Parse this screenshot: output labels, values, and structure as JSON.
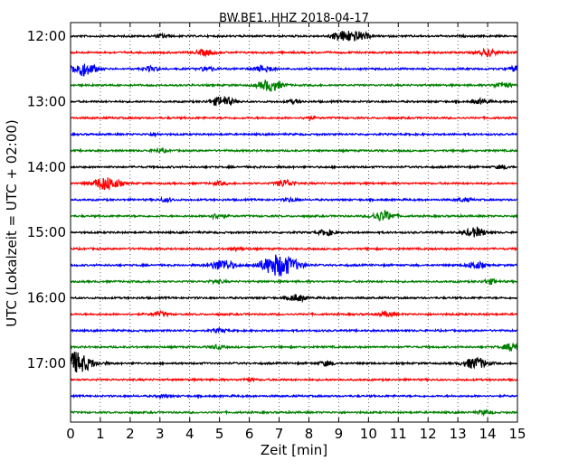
{
  "chart_data": {
    "type": "line",
    "title": "BW.BE1..HHZ 2018-04-17",
    "xlabel": "Zeit  [min]",
    "ylabel": "UTC (Lokalzeit = UTC + 02:00)",
    "xlim": [
      0,
      15
    ],
    "x_ticks": [
      "0",
      "1",
      "2",
      "3",
      "4",
      "5",
      "6",
      "7",
      "8",
      "9",
      "10",
      "11",
      "12",
      "13",
      "14",
      "15"
    ],
    "y_tick_labels": [
      "12:00",
      "13:00",
      "14:00",
      "15:00",
      "16:00",
      "17:00"
    ],
    "grid": "dotted vertical at each minute",
    "trace_interval_min": 15,
    "trace_colors": [
      "#000000",
      "#ff0000",
      "#0000ff",
      "#008000"
    ],
    "series": [
      {
        "start": "12:00",
        "events": [
          [
            3.1,
            0.3
          ],
          [
            9.0,
            0.6
          ],
          [
            9.3,
            0.5
          ],
          [
            9.5,
            0.4
          ],
          [
            9.8,
            0.5
          ]
        ]
      },
      {
        "start": "12:15",
        "events": [
          [
            4.5,
            0.5
          ],
          [
            14.0,
            0.6
          ]
        ]
      },
      {
        "start": "12:30",
        "events": [
          [
            0.4,
            1.2
          ],
          [
            2.7,
            0.4
          ],
          [
            4.6,
            0.4
          ],
          [
            6.5,
            0.6
          ],
          [
            15.0,
            0.5
          ]
        ]
      },
      {
        "start": "12:45",
        "events": [
          [
            6.7,
            1.0
          ],
          [
            14.5,
            0.5
          ]
        ]
      },
      {
        "start": "13:00",
        "events": [
          [
            5.1,
            0.9
          ],
          [
            7.5,
            0.3
          ],
          [
            13.8,
            0.4
          ]
        ]
      },
      {
        "start": "13:15",
        "events": [
          [
            8.0,
            0.2
          ]
        ]
      },
      {
        "start": "13:30",
        "events": [
          [
            2.8,
            0.2
          ]
        ]
      },
      {
        "start": "13:45",
        "events": [
          [
            3.0,
            0.3
          ]
        ]
      },
      {
        "start": "14:00",
        "events": [
          [
            14.5,
            0.3
          ]
        ]
      },
      {
        "start": "14:15",
        "events": [
          [
            1.2,
            1.2
          ],
          [
            7.2,
            0.6
          ],
          [
            5.0,
            0.3
          ]
        ]
      },
      {
        "start": "14:30",
        "events": [
          [
            3.2,
            0.3
          ],
          [
            7.4,
            0.3
          ],
          [
            13.2,
            0.3
          ]
        ]
      },
      {
        "start": "14:45",
        "events": [
          [
            4.9,
            0.4
          ],
          [
            10.5,
            0.9
          ]
        ]
      },
      {
        "start": "15:00",
        "events": [
          [
            8.6,
            0.5
          ],
          [
            13.6,
            0.8
          ]
        ]
      },
      {
        "start": "15:15",
        "events": [
          [
            5.6,
            0.3
          ]
        ]
      },
      {
        "start": "15:30",
        "events": [
          [
            5.1,
            1.0
          ],
          [
            7.0,
            2.0
          ],
          [
            13.6,
            0.6
          ]
        ]
      },
      {
        "start": "15:45",
        "events": [
          [
            4.9,
            0.3
          ],
          [
            14.1,
            0.4
          ]
        ]
      },
      {
        "start": "16:00",
        "events": [
          [
            7.6,
            0.6
          ]
        ]
      },
      {
        "start": "16:15",
        "events": [
          [
            3.0,
            0.4
          ],
          [
            10.6,
            0.4
          ]
        ]
      },
      {
        "start": "16:30",
        "events": [
          [
            5.0,
            0.3
          ]
        ]
      },
      {
        "start": "16:45",
        "events": [
          [
            4.9,
            0.3
          ],
          [
            15.0,
            1.0
          ]
        ]
      },
      {
        "start": "17:00",
        "events": [
          [
            0.1,
            2.0
          ],
          [
            8.6,
            0.4
          ],
          [
            13.6,
            1.0
          ]
        ]
      },
      {
        "start": "17:15",
        "events": [
          [
            6.0,
            0.2
          ]
        ]
      },
      {
        "start": "17:30",
        "events": [
          [
            3.1,
            0.2
          ]
        ]
      },
      {
        "start": "17:45",
        "events": [
          [
            13.9,
            0.3
          ]
        ]
      }
    ]
  }
}
